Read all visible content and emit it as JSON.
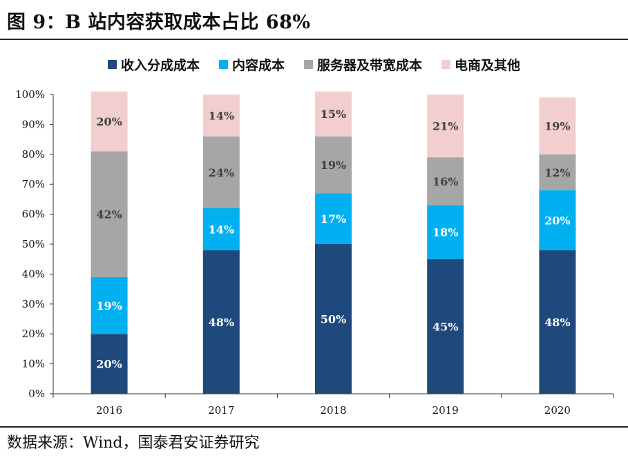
{
  "title": "图 9：B 站内容获取成本占比 68%",
  "source": "数据来源：Wind，国泰君安证券研究",
  "chart_data": {
    "type": "bar",
    "stacked": true,
    "categories": [
      "2016",
      "2017",
      "2018",
      "2019",
      "2020"
    ],
    "series": [
      {
        "name": "收入分成成本",
        "color": "#1f497d",
        "label_color": "#ffffff",
        "values": [
          20,
          48,
          50,
          45,
          48
        ],
        "labels": [
          "20%",
          "48%",
          "50%",
          "45%",
          "48%"
        ]
      },
      {
        "name": "内容成本",
        "color": "#00b0f0",
        "label_color": "#ffffff",
        "values": [
          19,
          14,
          17,
          18,
          20
        ],
        "labels": [
          "19%",
          "14%",
          "17%",
          "18%",
          "20%"
        ]
      },
      {
        "name": "服务器及带宽成本",
        "color": "#a6a6a6",
        "label_color": "#404040",
        "values": [
          42,
          24,
          19,
          16,
          12
        ],
        "labels": [
          "42%",
          "24%",
          "19%",
          "16%",
          "12%"
        ]
      },
      {
        "name": "电商及其他",
        "color": "#f2cece",
        "label_color": "#404040",
        "values": [
          20,
          14,
          15,
          21,
          19
        ],
        "labels": [
          "20%",
          "14%",
          "15%",
          "21%",
          "19%"
        ]
      }
    ],
    "ylim": [
      0,
      100
    ],
    "yticks": [
      "0%",
      "10%",
      "20%",
      "30%",
      "40%",
      "50%",
      "60%",
      "70%",
      "80%",
      "90%",
      "100%"
    ],
    "legend_position": "top",
    "grid": false
  }
}
